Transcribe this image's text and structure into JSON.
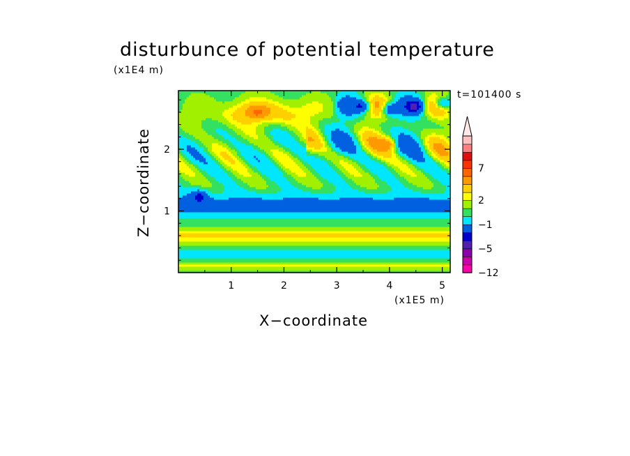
{
  "chart_data": {
    "type": "heatmap",
    "title": "disturbunce of potential temperature",
    "xlabel": "X−coordinate",
    "ylabel": "Z−coordinate",
    "x_unit": "(x1E5 m)",
    "y_unit": "(x1E4 m)",
    "time_label": "t=101400 s",
    "xlim": [
      0,
      5.15
    ],
    "ylim": [
      0,
      2.95
    ],
    "x_ticks": [
      "1",
      "2",
      "3",
      "4",
      "5"
    ],
    "y_ticks": [
      "1",
      "2"
    ],
    "colorbar": {
      "levels": [
        -12,
        -5,
        -1,
        2,
        7
      ],
      "tick_labels": [
        "7",
        "2",
        "−1",
        "−5",
        "−12"
      ],
      "colors": [
        "#ff00aa",
        "#cc00aa",
        "#8a00aa",
        "#5020b0",
        "#0000cc",
        "#0060e0",
        "#00e6ff",
        "#33e060",
        "#a0f000",
        "#ffff00",
        "#ffd000",
        "#ff9900",
        "#ff6600",
        "#ff3300",
        "#e01010",
        "#ff8080",
        "#ffc0c0"
      ],
      "extend": "max"
    },
    "features": [
      {
        "x": 3.5,
        "z": 2.7,
        "value": -6
      },
      {
        "x": 4.0,
        "z": 2.65,
        "value": -6
      },
      {
        "x": 4.5,
        "z": 2.7,
        "value": -6
      },
      {
        "x": 5.0,
        "z": 2.75,
        "value": -6
      },
      {
        "x": 0.4,
        "z": 1.25,
        "value": -5
      },
      {
        "x": 1.5,
        "z": 2.6,
        "value": 3
      },
      {
        "x": 4.0,
        "z": 2.1,
        "value": 4
      }
    ]
  }
}
